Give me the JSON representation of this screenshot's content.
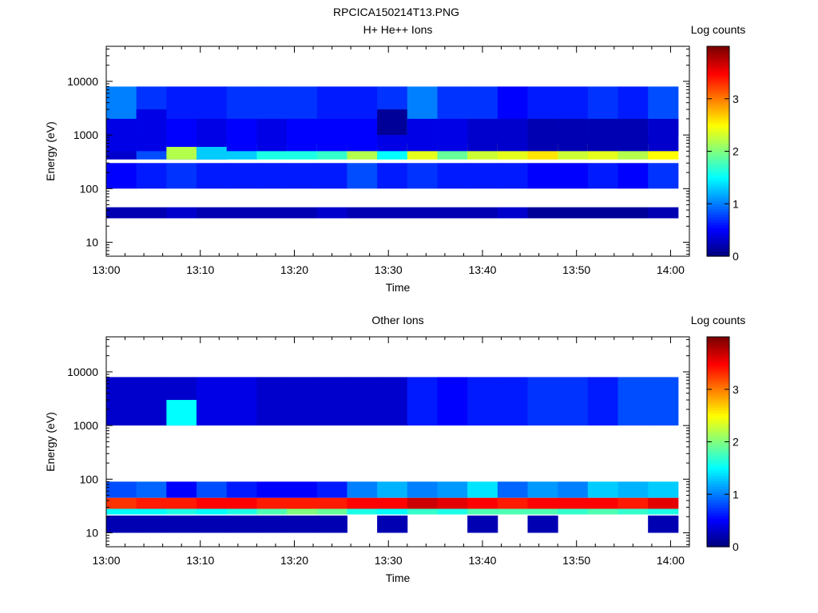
{
  "figure_title": "RPCICA150214T13.PNG",
  "chart_data": [
    {
      "type": "heatmap",
      "title": "H+ He++ Ions",
      "xlabel": "Time",
      "ylabel": "Energy (eV)",
      "x_ticks": [
        "13:00",
        "13:10",
        "13:20",
        "13:30",
        "13:40",
        "13:50",
        "14:00"
      ],
      "x_range_minutes": [
        0,
        62
      ],
      "y_scale": "log",
      "y_range": [
        5.5,
        45000
      ],
      "y_ticks": [
        10,
        100,
        1000,
        10000
      ],
      "y_tick_labels": [
        "10",
        "100",
        "1000",
        "10000"
      ],
      "colorbar": {
        "label": "Log counts",
        "range": [
          0,
          4
        ],
        "ticks": [
          0,
          1,
          2,
          3
        ],
        "tick_labels": [
          "0",
          "1",
          "2",
          "3"
        ]
      },
      "columns": [
        {
          "t": [
            0,
            3.2
          ],
          "bands": [
            [
              8,
              1
            ],
            [
              12,
              0.3
            ],
            [
              9,
              0.5
            ],
            [
              10,
              0.4
            ],
            [
              4,
              0.2
            ]
          ]
        },
        {
          "t": [
            3.2,
            6.4
          ],
          "bands": [
            [
              8,
              0.7
            ],
            [
              12,
              0.8
            ],
            [
              9,
              0.6
            ],
            [
              10,
              0.4
            ],
            [
              4,
              0.2
            ],
            [
              1,
              0.4
            ]
          ]
        },
        {
          "t": [
            6.4,
            9.6
          ],
          "bands": [
            [
              8,
              0.6
            ],
            [
              12,
              0.9
            ],
            [
              9,
              0.7
            ],
            [
              10,
              0.5
            ],
            [
              4,
              0.3
            ],
            [
              3,
              2.2
            ]
          ]
        },
        {
          "t": [
            9.6,
            12.8
          ],
          "bands": [
            [
              8,
              0.6
            ],
            [
              12,
              0.9
            ],
            [
              9,
              0.6
            ],
            [
              10,
              0.4
            ],
            [
              4,
              0.2
            ],
            [
              3,
              1.3
            ]
          ]
        },
        {
          "t": [
            12.8,
            16.0
          ],
          "bands": [
            [
              8,
              0.7
            ],
            [
              12,
              1.3
            ],
            [
              9,
              0.6
            ],
            [
              10,
              0.5
            ],
            [
              4,
              0.2
            ]
          ]
        },
        {
          "t": [
            16.0,
            19.2
          ],
          "bands": [
            [
              8,
              0.7
            ],
            [
              12,
              1.6
            ],
            [
              9,
              0.6
            ],
            [
              10,
              0.4
            ],
            [
              4,
              0.2
            ]
          ]
        },
        {
          "t": [
            19.2,
            22.4
          ],
          "bands": [
            [
              8,
              0.7
            ],
            [
              12,
              1.6
            ],
            [
              9,
              0.6
            ],
            [
              10,
              0.5
            ],
            [
              4,
              0.2
            ]
          ]
        },
        {
          "t": [
            22.4,
            25.6
          ],
          "bands": [
            [
              8,
              0.6
            ],
            [
              12,
              1.7
            ],
            [
              9,
              0.6
            ],
            [
              10,
              0.5
            ],
            [
              4,
              0.3
            ]
          ]
        },
        {
          "t": [
            25.6,
            28.8
          ],
          "bands": [
            [
              8,
              0.6
            ],
            [
              12,
              2.2
            ],
            [
              9,
              0.8
            ],
            [
              10,
              0.5
            ],
            [
              4,
              0.2
            ]
          ]
        },
        {
          "t": [
            28.8,
            32.0
          ],
          "bands": [
            [
              8,
              0.7
            ],
            [
              12,
              1.5
            ],
            [
              9,
              0.6
            ],
            [
              10,
              0.4
            ],
            [
              4,
              0.2
            ],
            [
              1,
              0.1
            ]
          ]
        },
        {
          "t": [
            32.0,
            35.2
          ],
          "bands": [
            [
              8,
              1.0
            ],
            [
              12,
              2.4
            ],
            [
              9,
              0.7
            ],
            [
              10,
              0.4
            ],
            [
              4,
              0.2
            ]
          ]
        },
        {
          "t": [
            35.2,
            38.4
          ],
          "bands": [
            [
              8,
              0.7
            ],
            [
              12,
              1.9
            ],
            [
              9,
              0.6
            ],
            [
              10,
              0.4
            ],
            [
              4,
              0.2
            ]
          ]
        },
        {
          "t": [
            38.4,
            41.6
          ],
          "bands": [
            [
              8,
              0.7
            ],
            [
              12,
              2.3
            ],
            [
              9,
              0.6
            ],
            [
              10,
              0.3
            ],
            [
              4,
              0.2
            ]
          ]
        },
        {
          "t": [
            41.6,
            44.8
          ],
          "bands": [
            [
              8,
              0.5
            ],
            [
              12,
              2.4
            ],
            [
              9,
              0.6
            ],
            [
              10,
              0.3
            ],
            [
              4,
              0.3
            ]
          ]
        },
        {
          "t": [
            44.8,
            48.0
          ],
          "bands": [
            [
              8,
              0.6
            ],
            [
              12,
              2.6
            ],
            [
              9,
              0.5
            ],
            [
              10,
              0.2
            ],
            [
              4,
              0.1
            ]
          ]
        },
        {
          "t": [
            48.0,
            51.2
          ],
          "bands": [
            [
              8,
              0.6
            ],
            [
              12,
              2.3
            ],
            [
              9,
              0.5
            ],
            [
              10,
              0.2
            ],
            [
              4,
              0.1
            ]
          ]
        },
        {
          "t": [
            51.2,
            54.4
          ],
          "bands": [
            [
              8,
              0.7
            ],
            [
              12,
              2.4
            ],
            [
              9,
              0.6
            ],
            [
              10,
              0.2
            ],
            [
              4,
              0.1
            ]
          ]
        },
        {
          "t": [
            54.4,
            57.6
          ],
          "bands": [
            [
              8,
              0.6
            ],
            [
              12,
              2.2
            ],
            [
              9,
              0.5
            ],
            [
              10,
              0.2
            ],
            [
              4,
              0.1
            ]
          ]
        },
        {
          "t": [
            57.6,
            60.8
          ],
          "bands": [
            [
              8,
              0.8
            ],
            [
              12,
              2.5
            ],
            [
              9,
              0.7
            ],
            [
              10,
              0.3
            ],
            [
              4,
              0.2
            ]
          ]
        }
      ]
    },
    {
      "type": "heatmap",
      "title": "Other Ions",
      "xlabel": "Time",
      "ylabel": "Energy (eV)",
      "x_ticks": [
        "13:00",
        "13:10",
        "13:20",
        "13:30",
        "13:40",
        "13:50",
        "14:00"
      ],
      "x_range_minutes": [
        0,
        62
      ],
      "y_scale": "log",
      "y_range": [
        5.5,
        45000
      ],
      "y_ticks": [
        10,
        100,
        1000,
        10000
      ],
      "y_tick_labels": [
        "10",
        "100",
        "1000",
        "10000"
      ],
      "colorbar": {
        "label": "Log counts",
        "range": [
          0,
          4
        ],
        "ticks": [
          0,
          1,
          2,
          3
        ],
        "tick_labels": [
          "0",
          "1",
          "2",
          "3"
        ]
      },
      "columns": [
        {
          "t": [
            0,
            3.2
          ],
          "bands": [
            [
              0,
              0.2
            ],
            [
              4,
              3.3
            ],
            [
              5,
              1.5
            ],
            [
              6,
              0.8
            ],
            [
              8,
              0.3
            ]
          ]
        },
        {
          "t": [
            3.2,
            6.4
          ],
          "bands": [
            [
              0,
              0.2
            ],
            [
              4,
              3.4
            ],
            [
              5,
              1.5
            ],
            [
              6,
              0.9
            ],
            [
              8,
              0.3
            ]
          ]
        },
        {
          "t": [
            6.4,
            9.6
          ],
          "bands": [
            [
              0,
              0.2
            ],
            [
              4,
              3.4
            ],
            [
              5,
              1.6
            ],
            [
              6,
              0.5
            ],
            [
              8,
              0.3
            ],
            [
              1,
              1.5
            ]
          ]
        },
        {
          "t": [
            9.6,
            12.8
          ],
          "bands": [
            [
              0,
              0.2
            ],
            [
              4,
              3.5
            ],
            [
              5,
              1.5
            ],
            [
              6,
              0.8
            ],
            [
              8,
              0.4
            ]
          ]
        },
        {
          "t": [
            12.8,
            16.0
          ],
          "bands": [
            [
              0,
              0.2
            ],
            [
              4,
              3.5
            ],
            [
              5,
              1.6
            ],
            [
              6,
              0.6
            ],
            [
              8,
              0.4
            ]
          ]
        },
        {
          "t": [
            16.0,
            19.2
          ],
          "bands": [
            [
              0,
              0.2
            ],
            [
              4,
              3.4
            ],
            [
              5,
              1.8
            ],
            [
              6,
              0.5
            ],
            [
              8,
              0.3
            ]
          ]
        },
        {
          "t": [
            19.2,
            22.4
          ],
          "bands": [
            [
              0,
              0.2
            ],
            [
              4,
              3.4
            ],
            [
              5,
              2.0
            ],
            [
              6,
              0.5
            ],
            [
              8,
              0.3
            ]
          ]
        },
        {
          "t": [
            22.4,
            25.6
          ],
          "bands": [
            [
              0,
              0.2
            ],
            [
              4,
              3.4
            ],
            [
              5,
              1.9
            ],
            [
              6,
              0.6
            ],
            [
              8,
              0.3
            ]
          ]
        },
        {
          "t": [
            25.6,
            28.8
          ],
          "bands": [
            [
              4,
              3.5
            ],
            [
              5,
              1.6
            ],
            [
              6,
              1.0
            ],
            [
              8,
              0.3
            ]
          ]
        },
        {
          "t": [
            28.8,
            32.0
          ],
          "bands": [
            [
              0,
              0.2
            ],
            [
              4,
              3.5
            ],
            [
              5,
              1.5
            ],
            [
              6,
              1.2
            ],
            [
              8,
              0.3
            ]
          ]
        },
        {
          "t": [
            32.0,
            35.2
          ],
          "bands": [
            [
              4,
              3.7
            ],
            [
              5,
              1.7
            ],
            [
              6,
              1.0
            ],
            [
              8,
              0.6
            ]
          ]
        },
        {
          "t": [
            35.2,
            38.4
          ],
          "bands": [
            [
              4,
              3.6
            ],
            [
              5,
              1.6
            ],
            [
              6,
              1.1
            ],
            [
              8,
              0.5
            ]
          ]
        },
        {
          "t": [
            38.4,
            41.6
          ],
          "bands": [
            [
              0,
              0.2
            ],
            [
              4,
              3.5
            ],
            [
              5,
              1.8
            ],
            [
              6,
              1.4
            ],
            [
              8,
              0.6
            ]
          ]
        },
        {
          "t": [
            41.6,
            44.8
          ],
          "bands": [
            [
              4,
              3.4
            ],
            [
              5,
              1.8
            ],
            [
              6,
              0.9
            ],
            [
              8,
              0.6
            ]
          ]
        },
        {
          "t": [
            44.8,
            48.0
          ],
          "bands": [
            [
              0,
              0.2
            ],
            [
              4,
              3.5
            ],
            [
              5,
              1.8
            ],
            [
              6,
              1.1
            ],
            [
              8,
              0.7
            ]
          ]
        },
        {
          "t": [
            48.0,
            51.2
          ],
          "bands": [
            [
              4,
              3.5
            ],
            [
              5,
              1.7
            ],
            [
              6,
              1.0
            ],
            [
              8,
              0.7
            ]
          ]
        },
        {
          "t": [
            51.2,
            54.4
          ],
          "bands": [
            [
              4,
              3.5
            ],
            [
              5,
              1.8
            ],
            [
              6,
              1.3
            ],
            [
              8,
              0.6
            ]
          ]
        },
        {
          "t": [
            54.4,
            57.6
          ],
          "bands": [
            [
              4,
              3.4
            ],
            [
              5,
              1.7
            ],
            [
              6,
              1.2
            ],
            [
              8,
              0.8
            ]
          ]
        },
        {
          "t": [
            57.6,
            60.8
          ],
          "bands": [
            [
              0,
              0.2
            ],
            [
              4,
              3.6
            ],
            [
              5,
              1.6
            ],
            [
              6,
              1.3
            ],
            [
              8,
              0.8
            ]
          ]
        }
      ]
    }
  ]
}
